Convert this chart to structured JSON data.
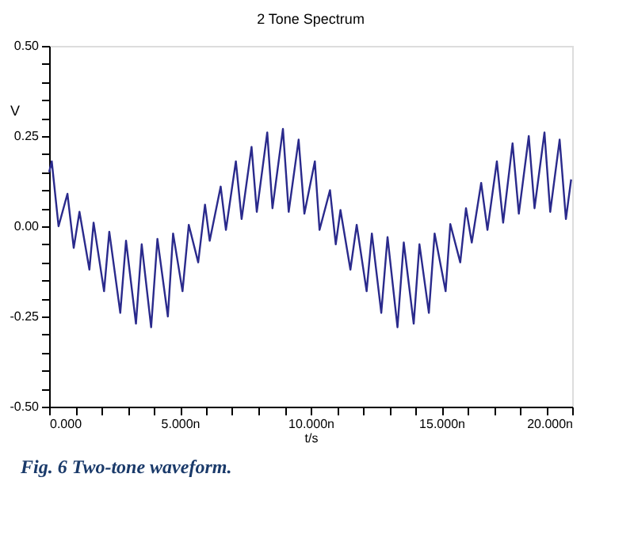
{
  "chart_data": {
    "type": "line",
    "title": "2 Tone Spectrum",
    "xlabel": "t/s",
    "ylabel": "V",
    "annotations": [
      "Fig. 6  Two-tone waveform."
    ],
    "x": [
      0,
      0.1,
      0.36,
      0.7,
      0.94,
      1.16,
      1.54,
      1.7,
      2.1,
      2.3,
      2.72,
      2.94,
      3.32,
      3.54,
      3.9,
      4.14,
      4.54,
      4.74,
      5.1,
      5.34,
      5.7,
      5.96,
      6.14,
      6.56,
      6.76,
      7.14,
      7.36,
      7.74,
      7.94,
      8.34,
      8.54,
      8.94,
      9.16,
      9.54,
      9.76,
      10.16,
      10.34,
      10.74,
      10.96,
      11.14,
      11.52,
      11.76,
      12.14,
      12.34,
      12.7,
      12.94,
      13.32,
      13.56,
      13.94,
      14.16,
      14.52,
      14.74,
      15.16,
      15.34,
      15.72,
      15.94,
      16.16,
      16.52,
      16.76,
      17.12,
      17.36,
      17.72,
      17.96,
      18.34,
      18.56,
      18.94,
      19.16,
      19.52,
      19.76,
      19.96
    ],
    "series": [
      {
        "color": "#2a2a8c",
        "values": [
          0.15,
          0.18,
          0.0,
          0.09,
          -0.06,
          0.04,
          -0.12,
          0.01,
          -0.18,
          -0.015,
          -0.24,
          -0.04,
          -0.27,
          -0.05,
          -0.28,
          -0.035,
          -0.25,
          -0.02,
          -0.18,
          0.004,
          -0.1,
          0.06,
          -0.04,
          0.11,
          -0.01,
          0.18,
          0.02,
          0.22,
          0.04,
          0.26,
          0.05,
          0.27,
          0.04,
          0.24,
          0.035,
          0.18,
          -0.01,
          0.1,
          -0.05,
          0.045,
          -0.12,
          0.004,
          -0.18,
          -0.02,
          -0.24,
          -0.03,
          -0.28,
          -0.045,
          -0.27,
          -0.05,
          -0.24,
          -0.02,
          -0.18,
          0.006,
          -0.1,
          0.05,
          -0.045,
          0.12,
          -0.01,
          0.18,
          0.01,
          0.23,
          0.035,
          0.25,
          0.05,
          0.26,
          0.04,
          0.24,
          0.02,
          0.13
        ]
      }
    ],
    "xlim": [
      0,
      20
    ],
    "xticks": [
      {
        "value": 0,
        "label": "0.000"
      },
      {
        "value": 1,
        "label": null
      },
      {
        "value": 2,
        "label": null
      },
      {
        "value": 3,
        "label": null
      },
      {
        "value": 4,
        "label": null
      },
      {
        "value": 5,
        "label": "5.000n"
      },
      {
        "value": 6,
        "label": null
      },
      {
        "value": 7,
        "label": null
      },
      {
        "value": 8,
        "label": null
      },
      {
        "value": 9,
        "label": null
      },
      {
        "value": 10,
        "label": "10.000n"
      },
      {
        "value": 11,
        "label": null
      },
      {
        "value": 12,
        "label": null
      },
      {
        "value": 13,
        "label": null
      },
      {
        "value": 14,
        "label": null
      },
      {
        "value": 15,
        "label": "15.000n"
      },
      {
        "value": 16,
        "label": null
      },
      {
        "value": 17,
        "label": null
      },
      {
        "value": 18,
        "label": null
      },
      {
        "value": 19,
        "label": null
      },
      {
        "value": 20,
        "label": "20.000n"
      }
    ],
    "ylim": [
      -0.5,
      0.5
    ],
    "yticks": [
      {
        "value": -0.5,
        "label": "-0.50"
      },
      {
        "value": -0.45,
        "label": null
      },
      {
        "value": -0.4,
        "label": null
      },
      {
        "value": -0.35,
        "label": null
      },
      {
        "value": -0.3,
        "label": null
      },
      {
        "value": -0.25,
        "label": "-0.25"
      },
      {
        "value": -0.2,
        "label": null
      },
      {
        "value": -0.15,
        "label": null
      },
      {
        "value": -0.1,
        "label": null
      },
      {
        "value": -0.05,
        "label": null
      },
      {
        "value": 0,
        "label": "0.00"
      },
      {
        "value": 0.05,
        "label": null
      },
      {
        "value": 0.1,
        "label": null
      },
      {
        "value": 0.15,
        "label": null
      },
      {
        "value": 0.2,
        "label": null
      },
      {
        "value": 0.25,
        "label": "0.25"
      },
      {
        "value": 0.3,
        "label": null
      },
      {
        "value": 0.35,
        "label": null
      },
      {
        "value": 0.4,
        "label": null
      },
      {
        "value": 0.45,
        "label": null
      },
      {
        "value": 0.5,
        "label": "0.50"
      }
    ],
    "grid": false,
    "marker": "none",
    "line_style": "solid"
  }
}
